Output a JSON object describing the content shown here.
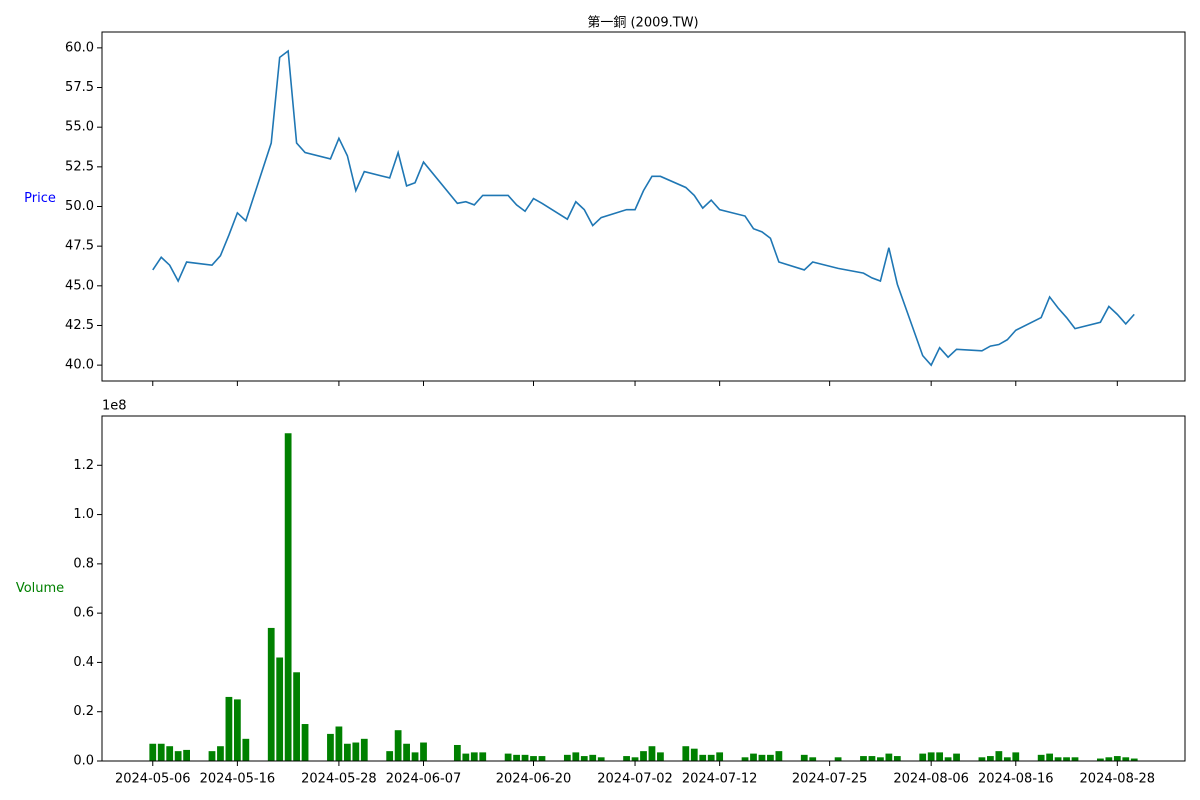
{
  "chart_data": [
    {
      "type": "line",
      "title": "第一銅 (2009.TW)",
      "ylabel": "Price",
      "ylabel_color": "#0000ff",
      "color": "#1f77b4",
      "x": [
        "2024-05-06",
        "2024-05-07",
        "2024-05-08",
        "2024-05-09",
        "2024-05-10",
        "2024-05-13",
        "2024-05-14",
        "2024-05-15",
        "2024-05-16",
        "2024-05-17",
        "2024-05-20",
        "2024-05-21",
        "2024-05-22",
        "2024-05-23",
        "2024-05-24",
        "2024-05-27",
        "2024-05-28",
        "2024-05-29",
        "2024-05-30",
        "2024-05-31",
        "2024-06-03",
        "2024-06-04",
        "2024-06-05",
        "2024-06-06",
        "2024-06-07",
        "2024-06-11",
        "2024-06-12",
        "2024-06-13",
        "2024-06-14",
        "2024-06-17",
        "2024-06-18",
        "2024-06-19",
        "2024-06-20",
        "2024-06-21",
        "2024-06-24",
        "2024-06-25",
        "2024-06-26",
        "2024-06-27",
        "2024-06-28",
        "2024-07-01",
        "2024-07-02",
        "2024-07-03",
        "2024-07-04",
        "2024-07-05",
        "2024-07-08",
        "2024-07-09",
        "2024-07-10",
        "2024-07-11",
        "2024-07-12",
        "2024-07-15",
        "2024-07-16",
        "2024-07-17",
        "2024-07-18",
        "2024-07-19",
        "2024-07-22",
        "2024-07-23",
        "2024-07-26",
        "2024-07-29",
        "2024-07-30",
        "2024-07-31",
        "2024-08-01",
        "2024-08-02",
        "2024-08-05",
        "2024-08-06",
        "2024-08-07",
        "2024-08-08",
        "2024-08-09",
        "2024-08-12",
        "2024-08-13",
        "2024-08-14",
        "2024-08-15",
        "2024-08-16",
        "2024-08-19",
        "2024-08-20",
        "2024-08-21",
        "2024-08-22",
        "2024-08-23",
        "2024-08-26",
        "2024-08-27",
        "2024-08-28",
        "2024-08-29",
        "2024-08-30"
      ],
      "values": [
        46.0,
        46.8,
        46.3,
        45.3,
        46.5,
        46.3,
        46.9,
        48.2,
        49.6,
        49.1,
        54.0,
        59.4,
        59.8,
        54.0,
        53.4,
        53.0,
        54.3,
        53.2,
        51.0,
        52.2,
        51.8,
        53.4,
        51.3,
        51.5,
        52.8,
        50.2,
        50.3,
        50.1,
        50.7,
        50.7,
        50.1,
        49.7,
        50.5,
        50.2,
        49.2,
        50.3,
        49.8,
        48.8,
        49.3,
        49.8,
        49.8,
        51.0,
        51.9,
        51.9,
        51.2,
        50.7,
        49.9,
        50.4,
        49.8,
        49.4,
        48.6,
        48.4,
        48.0,
        46.5,
        46.0,
        46.5,
        46.1,
        45.8,
        45.5,
        45.3,
        47.4,
        45.1,
        40.6,
        40.0,
        41.1,
        40.5,
        41.0,
        40.9,
        41.2,
        41.3,
        41.6,
        42.2,
        43.0,
        44.3,
        43.6,
        43.0,
        42.3,
        42.7,
        43.7,
        43.2,
        42.6,
        43.2
      ],
      "xlim": [
        "2024-04-30",
        "2024-09-05"
      ],
      "xticks": [
        "2024-05-06",
        "2024-05-16",
        "2024-05-28",
        "2024-06-07",
        "2024-06-20",
        "2024-07-02",
        "2024-07-12",
        "2024-07-25",
        "2024-08-06",
        "2024-08-16",
        "2024-08-28"
      ],
      "show_xtick_labels": false,
      "ylim": [
        39.0,
        61.0
      ],
      "yticks": [
        {
          "value": 40,
          "label": "40.0"
        },
        {
          "value": 42.5,
          "label": "42.5"
        },
        {
          "value": 45,
          "label": "45.0"
        },
        {
          "value": 47.5,
          "label": "47.5"
        },
        {
          "value": 50,
          "label": "50.0"
        },
        {
          "value": 52.5,
          "label": "52.5"
        },
        {
          "value": 55,
          "label": "55.0"
        },
        {
          "value": 57.5,
          "label": "57.5"
        },
        {
          "value": 60,
          "label": "60.0"
        }
      ]
    },
    {
      "type": "bar",
      "ylabel": "Volume",
      "ylabel_color": "#008000",
      "color": "#008000",
      "y_offset_label": "1e8",
      "x": [
        "2024-05-06",
        "2024-05-07",
        "2024-05-08",
        "2024-05-09",
        "2024-05-10",
        "2024-05-13",
        "2024-05-14",
        "2024-05-15",
        "2024-05-16",
        "2024-05-17",
        "2024-05-20",
        "2024-05-21",
        "2024-05-22",
        "2024-05-23",
        "2024-05-24",
        "2024-05-27",
        "2024-05-28",
        "2024-05-29",
        "2024-05-30",
        "2024-05-31",
        "2024-06-03",
        "2024-06-04",
        "2024-06-05",
        "2024-06-06",
        "2024-06-07",
        "2024-06-11",
        "2024-06-12",
        "2024-06-13",
        "2024-06-14",
        "2024-06-17",
        "2024-06-18",
        "2024-06-19",
        "2024-06-20",
        "2024-06-21",
        "2024-06-24",
        "2024-06-25",
        "2024-06-26",
        "2024-06-27",
        "2024-06-28",
        "2024-07-01",
        "2024-07-02",
        "2024-07-03",
        "2024-07-04",
        "2024-07-05",
        "2024-07-08",
        "2024-07-09",
        "2024-07-10",
        "2024-07-11",
        "2024-07-12",
        "2024-07-15",
        "2024-07-16",
        "2024-07-17",
        "2024-07-18",
        "2024-07-19",
        "2024-07-22",
        "2024-07-23",
        "2024-07-26",
        "2024-07-29",
        "2024-07-30",
        "2024-07-31",
        "2024-08-01",
        "2024-08-02",
        "2024-08-05",
        "2024-08-06",
        "2024-08-07",
        "2024-08-08",
        "2024-08-09",
        "2024-08-12",
        "2024-08-13",
        "2024-08-14",
        "2024-08-15",
        "2024-08-16",
        "2024-08-19",
        "2024-08-20",
        "2024-08-21",
        "2024-08-22",
        "2024-08-23",
        "2024-08-26",
        "2024-08-27",
        "2024-08-28",
        "2024-08-29",
        "2024-08-30"
      ],
      "values": [
        7000000,
        7000000,
        6000000,
        4000000,
        4500000,
        4000000,
        6000000,
        26000000,
        25000000,
        9000000,
        54000000,
        42000000,
        133000000,
        36000000,
        15000000,
        11000000,
        14000000,
        7000000,
        7500000,
        9000000,
        4000000,
        12500000,
        7000000,
        3500000,
        7500000,
        6500000,
        3000000,
        3500000,
        3500000,
        3000000,
        2500000,
        2500000,
        2000000,
        2000000,
        2500000,
        3500000,
        2000000,
        2500000,
        1500000,
        2000000,
        1500000,
        4000000,
        6000000,
        3500000,
        6000000,
        5000000,
        2500000,
        2500000,
        3500000,
        1500000,
        3000000,
        2500000,
        2500000,
        4000000,
        2500000,
        1500000,
        1500000,
        2000000,
        2000000,
        1500000,
        3000000,
        2000000,
        3000000,
        3500000,
        3500000,
        1500000,
        3000000,
        1500000,
        2000000,
        4000000,
        1500000,
        3500000,
        2500000,
        3000000,
        1500000,
        1500000,
        1500000,
        1000000,
        1500000,
        2000000,
        1500000,
        1000000
      ],
      "xlim": [
        "2024-04-30",
        "2024-09-05"
      ],
      "xticks": [
        "2024-05-06",
        "2024-05-16",
        "2024-05-28",
        "2024-06-07",
        "2024-06-20",
        "2024-07-02",
        "2024-07-12",
        "2024-07-25",
        "2024-08-06",
        "2024-08-16",
        "2024-08-28"
      ],
      "show_xtick_labels": true,
      "ylim": [
        0,
        140000000
      ],
      "yticks": [
        {
          "value": 0,
          "label": "0.0"
        },
        {
          "value": 20000000,
          "label": "0.2"
        },
        {
          "value": 40000000,
          "label": "0.4"
        },
        {
          "value": 60000000,
          "label": "0.6"
        },
        {
          "value": 80000000,
          "label": "0.8"
        },
        {
          "value": 100000000,
          "label": "1.0"
        },
        {
          "value": 120000000,
          "label": "1.2"
        }
      ]
    }
  ]
}
